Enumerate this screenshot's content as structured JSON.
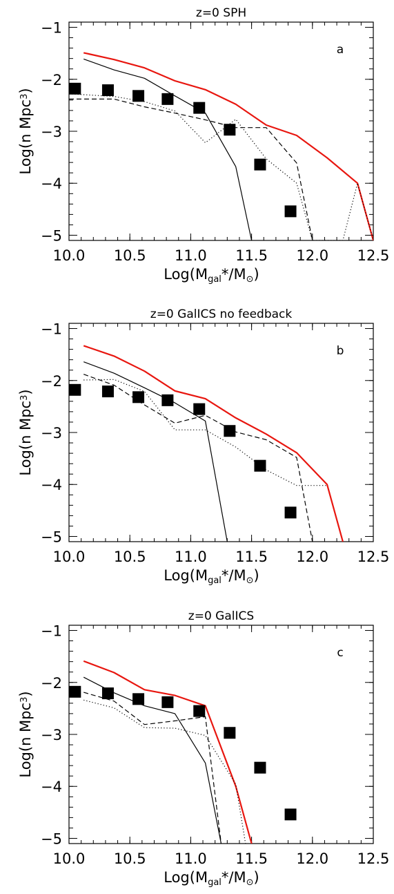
{
  "chart_data": [
    {
      "type": "line",
      "title": "z=0 SPH",
      "panel_label": "a",
      "xlabel": {
        "pre": "Log(M",
        "sub": "gal",
        "mid": "*/M",
        "sym": "⊙",
        "post": ")"
      },
      "ylabel": {
        "pre": "Log(n Mpc",
        "sup": "3",
        "post": ")"
      },
      "xlim": [
        10.0,
        12.5
      ],
      "ylim": [
        -5.1,
        -0.9
      ],
      "xticks": [
        "10.0",
        "10.5",
        "11.0",
        "11.5",
        "12.0",
        "12.5"
      ],
      "yticks": [
        "-1",
        "-2",
        "-3",
        "-4",
        "-5"
      ],
      "grid": false,
      "series": [
        {
          "style": "solid",
          "color": "#e8160f",
          "x": [
            10.12,
            10.37,
            10.62,
            10.87,
            11.12,
            11.37,
            11.62,
            11.87,
            12.12,
            12.37,
            12.5
          ],
          "y": [
            -1.49,
            -1.62,
            -1.78,
            -2.03,
            -2.2,
            -2.48,
            -2.88,
            -3.08,
            -3.51,
            -4.0,
            -5.1
          ]
        },
        {
          "style": "solid",
          "color": "#000000",
          "x": [
            10.12,
            10.37,
            10.62,
            10.87,
            11.12,
            11.37,
            11.5
          ],
          "y": [
            -1.61,
            -1.82,
            -1.98,
            -2.32,
            -2.65,
            -3.68,
            -5.1
          ]
        },
        {
          "style": "dashed",
          "color": "#000000",
          "x": [
            10.0,
            10.37,
            10.62,
            10.87,
            11.12,
            11.37,
            11.62,
            11.87,
            12.0
          ],
          "y": [
            -2.38,
            -2.38,
            -2.53,
            -2.65,
            -2.78,
            -2.93,
            -2.93,
            -3.61,
            -5.1
          ]
        },
        {
          "style": "dotted",
          "color": "#000000",
          "x": [
            10.0,
            10.37,
            10.62,
            10.87,
            11.12,
            11.37,
            11.62,
            11.87,
            12.0,
            12.25,
            12.37,
            12.5
          ],
          "y": [
            -2.28,
            -2.33,
            -2.43,
            -2.61,
            -3.22,
            -2.77,
            -3.53,
            -4.0,
            -5.1,
            -5.1,
            -4.0,
            -5.1
          ]
        }
      ],
      "observations": {
        "x": [
          10.05,
          10.32,
          10.57,
          10.81,
          11.07,
          11.32,
          11.57,
          11.82
        ],
        "y": [
          -2.18,
          -2.21,
          -2.32,
          -2.38,
          -2.55,
          -2.97,
          -3.64,
          -4.54
        ]
      }
    },
    {
      "type": "line",
      "title": "z=0 GalICS no feedback",
      "panel_label": "b",
      "xlabel": {
        "pre": "Log(M",
        "sub": "gal",
        "mid": "*/M",
        "sym": "⊙",
        "post": ")"
      },
      "ylabel": {
        "pre": "Log(n Mpc",
        "sup": "3",
        "post": ")"
      },
      "xlim": [
        10.0,
        12.5
      ],
      "ylim": [
        -5.1,
        -0.9
      ],
      "xticks": [
        "10.0",
        "10.5",
        "11.0",
        "11.5",
        "12.0",
        "12.5"
      ],
      "yticks": [
        "-1",
        "-2",
        "-3",
        "-4",
        "-5"
      ],
      "grid": false,
      "series": [
        {
          "style": "solid",
          "color": "#e8160f",
          "x": [
            10.12,
            10.37,
            10.62,
            10.87,
            11.12,
            11.37,
            11.62,
            11.87,
            12.12,
            12.25
          ],
          "y": [
            -1.33,
            -1.53,
            -1.82,
            -2.2,
            -2.35,
            -2.72,
            -3.03,
            -3.39,
            -4.0,
            -5.1
          ]
        },
        {
          "style": "solid",
          "color": "#000000",
          "x": [
            10.12,
            10.37,
            10.62,
            10.87,
            11.12,
            11.3
          ],
          "y": [
            -1.64,
            -1.86,
            -2.14,
            -2.43,
            -2.78,
            -5.1
          ]
        },
        {
          "style": "dashed",
          "color": "#000000",
          "x": [
            10.12,
            10.37,
            10.62,
            10.87,
            11.12,
            11.37,
            11.62,
            11.87,
            12.0
          ],
          "y": [
            -1.88,
            -2.09,
            -2.47,
            -2.82,
            -2.67,
            -2.99,
            -3.14,
            -3.48,
            -5.1
          ]
        },
        {
          "style": "dotted",
          "color": "#000000",
          "x": [
            10.12,
            10.37,
            10.62,
            10.87,
            11.12,
            11.37,
            11.62,
            11.87,
            12.12
          ],
          "y": [
            -1.99,
            -1.98,
            -2.21,
            -2.95,
            -2.95,
            -3.28,
            -3.72,
            -4.02,
            -4.02
          ]
        }
      ],
      "observations": {
        "x": [
          10.05,
          10.32,
          10.57,
          10.81,
          11.07,
          11.32,
          11.57,
          11.82
        ],
        "y": [
          -2.18,
          -2.21,
          -2.32,
          -2.38,
          -2.55,
          -2.97,
          -3.64,
          -4.54
        ]
      }
    },
    {
      "type": "line",
      "title": "z=0 GalICS",
      "panel_label": "c",
      "xlabel": {
        "pre": "Log(M",
        "sub": "gal",
        "mid": "*/M",
        "sym": "⊙",
        "post": ")"
      },
      "ylabel": {
        "pre": "Log(n Mpc",
        "sup": "3",
        "post": ")"
      },
      "xlim": [
        10.0,
        12.5
      ],
      "ylim": [
        -5.1,
        -0.9
      ],
      "xticks": [
        "10.0",
        "10.5",
        "11.0",
        "11.5",
        "12.0",
        "12.5"
      ],
      "yticks": [
        "-1",
        "-2",
        "-3",
        "-4",
        "-5"
      ],
      "grid": false,
      "series": [
        {
          "style": "solid",
          "color": "#e8160f",
          "x": [
            10.12,
            10.37,
            10.62,
            10.87,
            11.12,
            11.37,
            11.5
          ],
          "y": [
            -1.59,
            -1.81,
            -2.14,
            -2.25,
            -2.45,
            -4.0,
            -5.1
          ]
        },
        {
          "style": "solid",
          "color": "#000000",
          "x": [
            10.12,
            10.37,
            10.62,
            10.87,
            11.12,
            11.25
          ],
          "y": [
            -1.9,
            -2.2,
            -2.45,
            -2.6,
            -3.55,
            -5.1
          ]
        },
        {
          "style": "dashed",
          "color": "#000000",
          "x": [
            10.12,
            10.37,
            10.62,
            10.87,
            11.12,
            11.25
          ],
          "y": [
            -2.19,
            -2.36,
            -2.81,
            -2.74,
            -2.66,
            -5.1
          ]
        },
        {
          "style": "dotted",
          "color": "#000000",
          "x": [
            10.12,
            10.37,
            10.62,
            10.87,
            11.12,
            11.37,
            11.45
          ],
          "y": [
            -2.34,
            -2.49,
            -2.87,
            -2.88,
            -3.02,
            -3.96,
            -5.1
          ]
        }
      ],
      "observations": {
        "x": [
          10.05,
          10.32,
          10.57,
          10.81,
          11.07,
          11.32,
          11.57,
          11.82
        ],
        "y": [
          -2.18,
          -2.21,
          -2.32,
          -2.38,
          -2.55,
          -2.97,
          -3.64,
          -4.54
        ]
      }
    }
  ]
}
